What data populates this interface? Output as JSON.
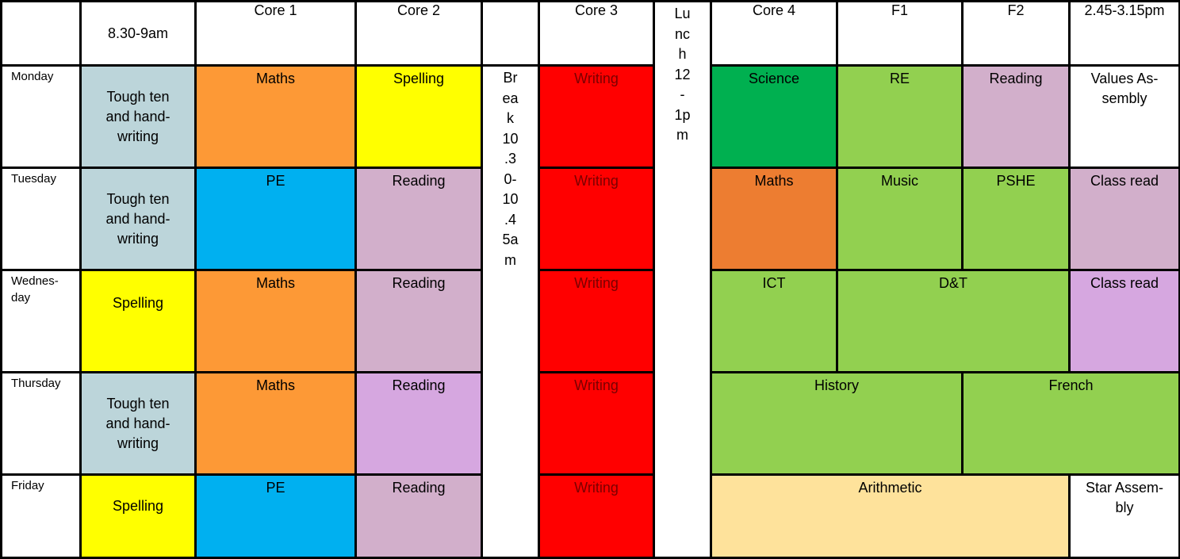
{
  "headers": [
    "",
    "8.30-9am",
    "Core 1",
    "Core 2",
    "",
    "Core 3",
    "",
    "Core 4",
    "F1",
    "F2",
    "2.45-3.15pm"
  ],
  "break_label": [
    "Br",
    "ea",
    "k",
    "10",
    ".3",
    "0-",
    "10",
    ".4",
    "5a",
    "m"
  ],
  "lunch_label": [
    "Lu",
    "nc",
    "h",
    "12",
    "-",
    "1p",
    "m"
  ],
  "days": [
    "Monday",
    "Tuesday",
    "Wednes-\nday",
    "Thursday",
    "Friday"
  ],
  "colors": {
    "light_blue": "#bcd5da",
    "orange": "#fd9936",
    "yellow": "#ffff00",
    "red": "#ff0000",
    "dark_green": "#00b050",
    "green": "#92d050",
    "mauve": "#d2afcb",
    "sky_blue": "#00b0f0",
    "burnt_orange": "#ed7d31",
    "lilac": "#d6a7e0",
    "sand": "#fee29b"
  },
  "monday": {
    "early": "Tough ten and hand-writing",
    "core1": "Maths",
    "core2": "Spelling",
    "core3": "Writing",
    "core4": "Science",
    "f1": "RE",
    "f2": "Reading",
    "late": "Values As-sembly"
  },
  "tuesday": {
    "early": "Tough ten and hand-writing",
    "core1": "PE",
    "core2": "Reading",
    "core3": "Writing",
    "core4": "Maths",
    "f1": "Music",
    "f2": "PSHE",
    "late": "Class read"
  },
  "wednesday": {
    "early": "Spelling",
    "core1": "Maths",
    "core2": "Reading",
    "core3": "Writing",
    "core4": "ICT",
    "f1_f2": "D&T",
    "late": "Class read"
  },
  "thursday": {
    "early": "Tough ten and hand-writing",
    "core1": "Maths",
    "core2": "Reading",
    "core3": "Writing",
    "core4_f1": "History",
    "f2_late": "French"
  },
  "friday": {
    "early": "Spelling",
    "core1": "PE",
    "core2": "Reading",
    "core3": "Writing",
    "core4_f2": "Arithmetic",
    "late": "Star Assem-bly"
  }
}
